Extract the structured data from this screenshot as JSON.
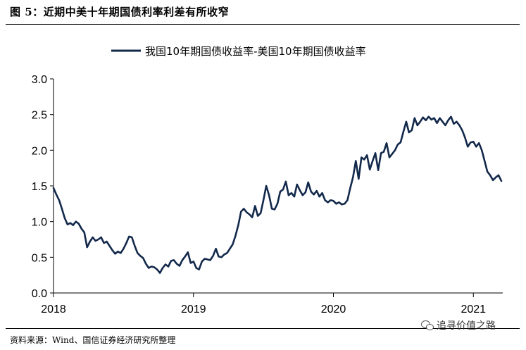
{
  "figure": {
    "title": "图 5：近期中美十年期国债利率利差有所收窄",
    "source": "资料来源：Wind、国信证券经济研究所整理",
    "watermark": "追寻价值之路"
  },
  "chart_data": {
    "type": "line",
    "title": "",
    "xlabel": "",
    "ylabel": "",
    "legend_position": "top-center",
    "line_color": "#13294b",
    "x_ticks": [
      "2018",
      "2019",
      "2020",
      "2021"
    ],
    "y_ticks": [
      "0.0",
      "0.5",
      "1.0",
      "1.5",
      "2.0",
      "2.5",
      "3.0"
    ],
    "xlim": [
      2018.0,
      2021.21
    ],
    "ylim": [
      0.0,
      3.0
    ],
    "series": [
      {
        "name": "我国10年期国债收益率-美国10年期国债收益率",
        "x": [
          2018.0,
          2018.02,
          2018.04,
          2018.06,
          2018.08,
          2018.1,
          2018.12,
          2018.14,
          2018.16,
          2018.18,
          2018.2,
          2018.22,
          2018.24,
          2018.26,
          2018.28,
          2018.3,
          2018.32,
          2018.34,
          2018.36,
          2018.38,
          2018.4,
          2018.42,
          2018.44,
          2018.46,
          2018.48,
          2018.5,
          2018.52,
          2018.54,
          2018.56,
          2018.58,
          2018.6,
          2018.62,
          2018.64,
          2018.66,
          2018.68,
          2018.7,
          2018.72,
          2018.74,
          2018.76,
          2018.78,
          2018.8,
          2018.82,
          2018.84,
          2018.86,
          2018.88,
          2018.9,
          2018.92,
          2018.94,
          2018.96,
          2018.98,
          2019.0,
          2019.02,
          2019.04,
          2019.06,
          2019.08,
          2019.1,
          2019.12,
          2019.14,
          2019.16,
          2019.18,
          2019.2,
          2019.22,
          2019.24,
          2019.26,
          2019.28,
          2019.3,
          2019.32,
          2019.34,
          2019.36,
          2019.38,
          2019.4,
          2019.42,
          2019.44,
          2019.46,
          2019.48,
          2019.5,
          2019.52,
          2019.54,
          2019.56,
          2019.58,
          2019.6,
          2019.62,
          2019.64,
          2019.66,
          2019.68,
          2019.7,
          2019.72,
          2019.74,
          2019.76,
          2019.78,
          2019.8,
          2019.82,
          2019.84,
          2019.86,
          2019.88,
          2019.9,
          2019.92,
          2019.94,
          2019.96,
          2019.98,
          2020.0,
          2020.02,
          2020.04,
          2020.06,
          2020.08,
          2020.1,
          2020.12,
          2020.14,
          2020.16,
          2020.18,
          2020.2,
          2020.22,
          2020.24,
          2020.26,
          2020.28,
          2020.3,
          2020.32,
          2020.34,
          2020.36,
          2020.38,
          2020.4,
          2020.42,
          2020.44,
          2020.46,
          2020.48,
          2020.5,
          2020.52,
          2020.54,
          2020.56,
          2020.58,
          2020.6,
          2020.62,
          2020.64,
          2020.66,
          2020.68,
          2020.7,
          2020.72,
          2020.74,
          2020.76,
          2020.78,
          2020.8,
          2020.82,
          2020.84,
          2020.86,
          2020.88,
          2020.9,
          2020.92,
          2020.94,
          2020.96,
          2020.98,
          2021.0,
          2021.02,
          2021.04,
          2021.06,
          2021.08,
          2021.1,
          2021.12,
          2021.14,
          2021.16,
          2021.18,
          2021.2
        ],
        "values": [
          1.47,
          1.38,
          1.3,
          1.18,
          1.05,
          0.96,
          0.98,
          0.95,
          1.0,
          0.97,
          0.9,
          0.85,
          0.64,
          0.72,
          0.78,
          0.73,
          0.75,
          0.78,
          0.7,
          0.72,
          0.66,
          0.6,
          0.55,
          0.58,
          0.56,
          0.62,
          0.7,
          0.79,
          0.78,
          0.66,
          0.56,
          0.52,
          0.49,
          0.41,
          0.35,
          0.37,
          0.36,
          0.33,
          0.28,
          0.35,
          0.4,
          0.37,
          0.45,
          0.46,
          0.41,
          0.38,
          0.46,
          0.51,
          0.57,
          0.42,
          0.44,
          0.35,
          0.33,
          0.44,
          0.48,
          0.47,
          0.46,
          0.52,
          0.62,
          0.51,
          0.5,
          0.54,
          0.56,
          0.62,
          0.68,
          0.8,
          0.95,
          1.14,
          1.18,
          1.13,
          1.1,
          1.06,
          1.22,
          1.08,
          1.12,
          1.3,
          1.5,
          1.37,
          1.18,
          1.17,
          1.25,
          1.42,
          1.45,
          1.56,
          1.37,
          1.4,
          1.35,
          1.52,
          1.44,
          1.37,
          1.41,
          1.55,
          1.42,
          1.38,
          1.43,
          1.35,
          1.4,
          1.3,
          1.27,
          1.3,
          1.29,
          1.25,
          1.27,
          1.24,
          1.25,
          1.3,
          1.47,
          1.62,
          1.85,
          1.6,
          1.9,
          1.87,
          1.93,
          1.73,
          1.85,
          1.96,
          1.72,
          1.96,
          1.98,
          2.1,
          1.9,
          1.95,
          2.0,
          2.08,
          2.11,
          2.26,
          2.4,
          2.25,
          2.28,
          2.45,
          2.35,
          2.4,
          2.46,
          2.42,
          2.47,
          2.43,
          2.45,
          2.38,
          2.45,
          2.4,
          2.35,
          2.42,
          2.47,
          2.37,
          2.4,
          2.35,
          2.28,
          2.18,
          2.05,
          2.11,
          2.12,
          2.05,
          2.1,
          2.0,
          1.85,
          1.7,
          1.65,
          1.58,
          1.62,
          1.65,
          1.57
        ]
      }
    ]
  }
}
